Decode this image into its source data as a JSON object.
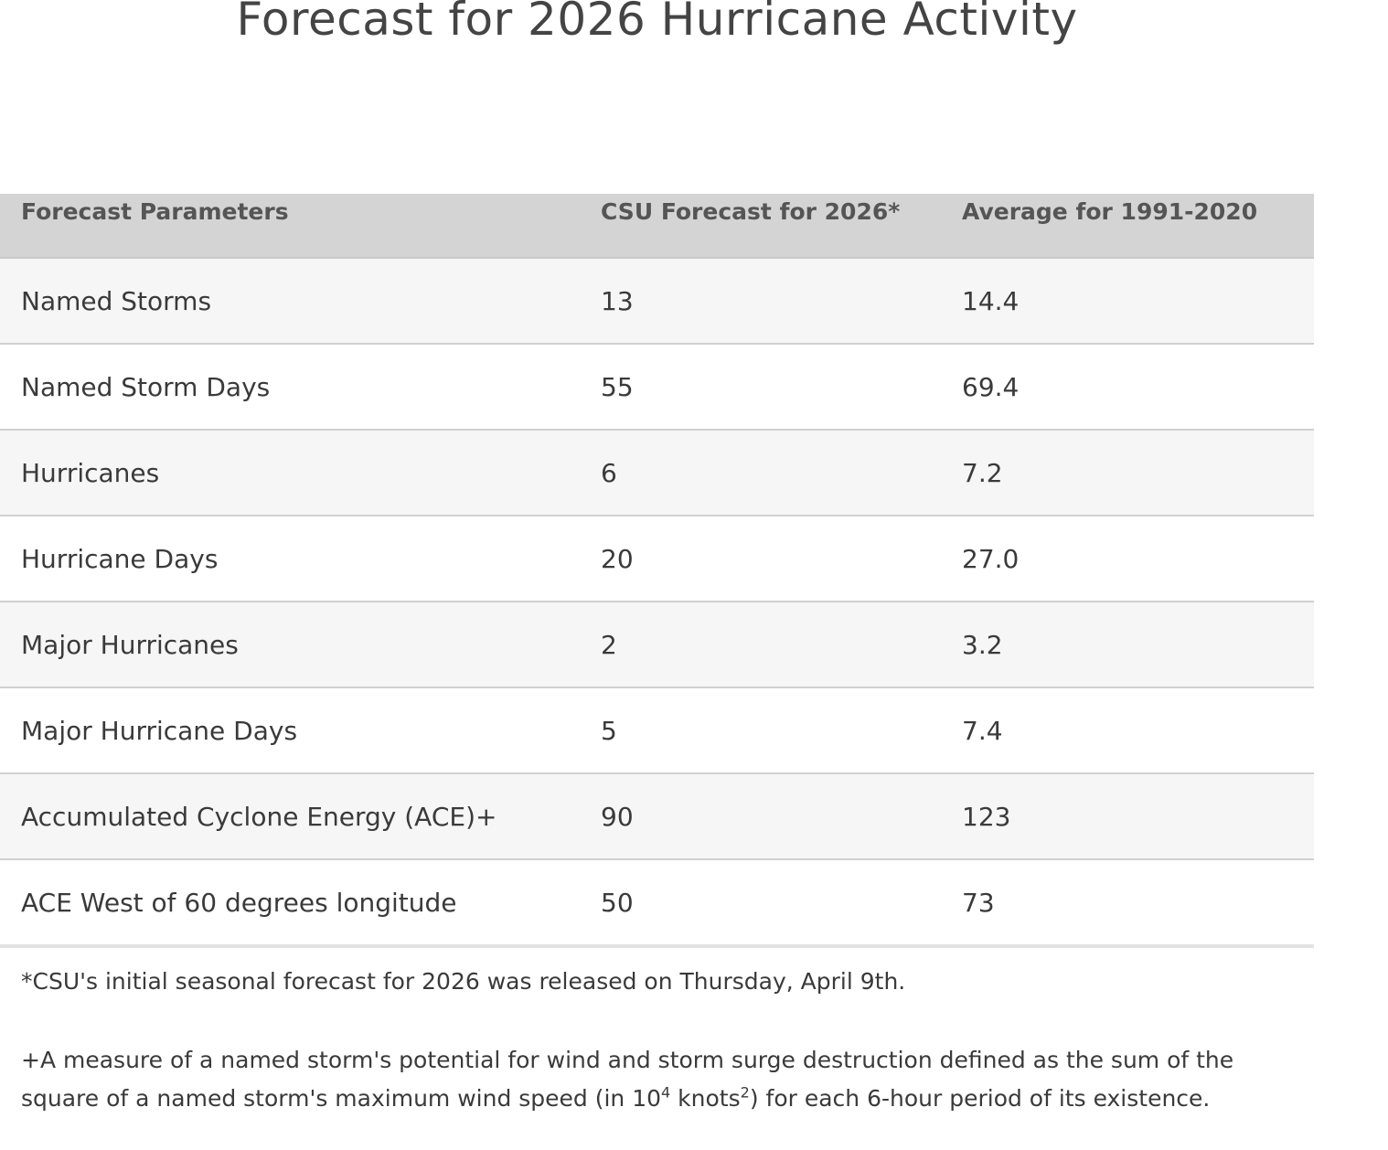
{
  "title": "Forecast for 2026 Hurricane Activity",
  "table": {
    "header": [
      "Forecast Parameters",
      "CSU Forecast for 2026*",
      "Average for 1991-2020"
    ],
    "rows": [
      [
        "Named Storms",
        "13",
        "14.4"
      ],
      [
        "Named Storm Days",
        "55",
        "69.4"
      ],
      [
        "Hurricanes",
        "6",
        "7.2"
      ],
      [
        "Hurricane Days",
        "20",
        "27.0"
      ],
      [
        "Major Hurricanes",
        "2",
        "3.2"
      ],
      [
        "Major Hurricane Days",
        "5",
        "7.4"
      ],
      [
        "Accumulated Cyclone Energy (ACE)+",
        "90",
        "123"
      ],
      [
        "ACE West of 60 degrees longitude",
        "50",
        "73"
      ]
    ]
  },
  "notes": {
    "release": "*CSU's initial seasonal forecast for 2026 was released on Thursday, April 9th.",
    "ace": [
      "+A measure of a named storm's potential for wind and storm surge destruction defined as the sum of the square of a named storm's maximum wind speed (in 10",
      "4",
      " knots",
      "2",
      ") for each 6-hour period of its existence."
    ]
  }
}
